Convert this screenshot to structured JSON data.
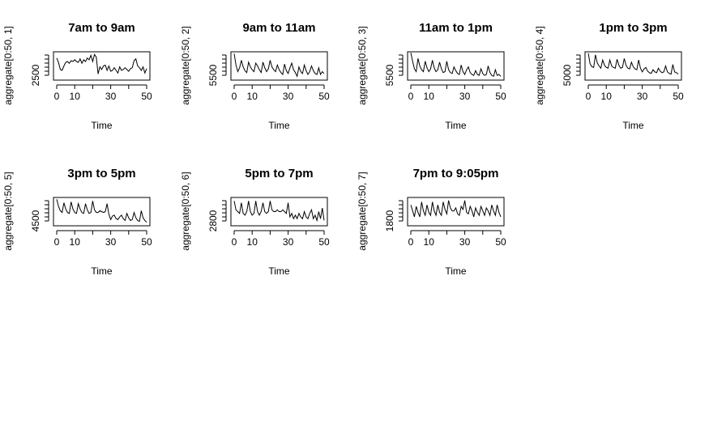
{
  "chart_data": [
    {
      "type": "line",
      "title": "7am to 9am",
      "xlabel": "Time",
      "ylabel": "aggregate[0:50, 1]",
      "xlim": [
        0,
        50
      ],
      "ylim": [
        1900,
        3500
      ],
      "xticks": [
        0,
        10,
        30,
        50
      ],
      "yticks": [
        2500
      ],
      "x": [
        0,
        1,
        2,
        3,
        4,
        5,
        6,
        7,
        8,
        9,
        10,
        11,
        12,
        13,
        14,
        15,
        16,
        17,
        18,
        19,
        20,
        21,
        22,
        23,
        24,
        25,
        26,
        27,
        28,
        29,
        30,
        31,
        32,
        33,
        34,
        35,
        36,
        37,
        38,
        39,
        40,
        41,
        42,
        43,
        44,
        45,
        46,
        47,
        48,
        49,
        50
      ],
      "values": [
        3150,
        2900,
        2500,
        2450,
        2700,
        2900,
        2950,
        2850,
        3000,
        2950,
        3050,
        2950,
        2900,
        3100,
        2850,
        3050,
        2950,
        3150,
        3050,
        3300,
        2950,
        3350,
        3200,
        2250,
        2650,
        2500,
        2700,
        2750,
        2450,
        2700,
        2400,
        2450,
        2600,
        2450,
        2300,
        2650,
        2450,
        2500,
        2600,
        2500,
        2400,
        2550,
        2600,
        3000,
        3100,
        2700,
        2600,
        2450,
        2650,
        2300,
        2550
      ]
    },
    {
      "type": "line",
      "title": "9am to 11am",
      "xlabel": "Time",
      "ylabel": "aggregate[0:50, 2]",
      "xlim": [
        0,
        50
      ],
      "ylim": [
        5000,
        8000
      ],
      "xticks": [
        0,
        10,
        30,
        50
      ],
      "yticks": [
        5500
      ],
      "x": [
        0,
        1,
        2,
        3,
        4,
        5,
        6,
        7,
        8,
        9,
        10,
        11,
        12,
        13,
        14,
        15,
        16,
        17,
        18,
        19,
        20,
        21,
        22,
        23,
        24,
        25,
        26,
        27,
        28,
        29,
        30,
        31,
        32,
        33,
        34,
        35,
        36,
        37,
        38,
        39,
        40,
        41,
        42,
        43,
        44,
        45,
        46,
        47,
        48,
        49,
        50
      ],
      "values": [
        7800,
        6600,
        5900,
        6300,
        7100,
        6400,
        6000,
        5800,
        6900,
        6400,
        6100,
        5900,
        6800,
        6500,
        6100,
        5800,
        6900,
        6300,
        5900,
        6200,
        7100,
        6400,
        6100,
        5900,
        6600,
        6100,
        5800,
        5600,
        6700,
        6000,
        5700,
        6300,
        6800,
        6100,
        5800,
        5400,
        6400,
        5900,
        5700,
        6600,
        6000,
        5600,
        5900,
        6500,
        6000,
        5700,
        5600,
        6300,
        5600,
        5900,
        5700
      ]
    },
    {
      "type": "line",
      "title": "11am to 1pm",
      "xlabel": "Time",
      "ylabel": "aggregate[0:50, 3]",
      "xlim": [
        0,
        50
      ],
      "ylim": [
        5000,
        8000
      ],
      "xticks": [
        0,
        10,
        30,
        50
      ],
      "yticks": [
        5500
      ],
      "x": [
        0,
        1,
        2,
        3,
        4,
        5,
        6,
        7,
        8,
        9,
        10,
        11,
        12,
        13,
        14,
        15,
        16,
        17,
        18,
        19,
        20,
        21,
        22,
        23,
        24,
        25,
        26,
        27,
        28,
        29,
        30,
        31,
        32,
        33,
        34,
        35,
        36,
        37,
        38,
        39,
        40,
        41,
        42,
        43,
        44,
        45,
        46,
        47,
        48,
        49,
        50
      ],
      "values": [
        7900,
        7000,
        6200,
        5900,
        7300,
        6500,
        6100,
        5900,
        7000,
        6300,
        5900,
        6200,
        7100,
        6300,
        5900,
        6100,
        6900,
        6200,
        5800,
        5900,
        7000,
        6100,
        5800,
        5700,
        6400,
        6000,
        5700,
        5600,
        6600,
        5900,
        5600,
        6100,
        6400,
        5800,
        5600,
        5500,
        6000,
        5600,
        5500,
        6200,
        5700,
        5500,
        5600,
        6500,
        5800,
        5500,
        5400,
        6100,
        5500,
        5600,
        5400
      ]
    },
    {
      "type": "line",
      "title": "1pm to 3pm",
      "xlabel": "Time",
      "ylabel": "aggregate[0:50, 4]",
      "xlim": [
        0,
        50
      ],
      "ylim": [
        4200,
        8000
      ],
      "xticks": [
        0,
        10,
        30,
        50
      ],
      "yticks": [
        5000
      ],
      "x": [
        0,
        1,
        2,
        3,
        4,
        5,
        6,
        7,
        8,
        9,
        10,
        11,
        12,
        13,
        14,
        15,
        16,
        17,
        18,
        19,
        20,
        21,
        22,
        23,
        24,
        25,
        26,
        27,
        28,
        29,
        30,
        31,
        32,
        33,
        34,
        35,
        36,
        37,
        38,
        39,
        40,
        41,
        42,
        43,
        44,
        45,
        46,
        47,
        48,
        49,
        50
      ],
      "values": [
        7800,
        6400,
        6000,
        5900,
        7600,
        6500,
        6100,
        5800,
        6900,
        6200,
        5900,
        5800,
        6900,
        6100,
        5900,
        5800,
        7000,
        6200,
        5800,
        5900,
        7100,
        6200,
        5800,
        5700,
        6600,
        6000,
        5700,
        5600,
        6900,
        5800,
        5300,
        5700,
        5900,
        5400,
        5200,
        5100,
        5600,
        5300,
        5200,
        5800,
        5400,
        5200,
        5300,
        6100,
        5300,
        5100,
        5000,
        6300,
        5300,
        5200,
        5000
      ]
    },
    {
      "type": "line",
      "title": "3pm to 5pm",
      "xlabel": "Time",
      "ylabel": "aggregate[0:50, 5]",
      "xlim": [
        0,
        50
      ],
      "ylim": [
        4100,
        7300
      ],
      "xticks": [
        0,
        10,
        30,
        50
      ],
      "yticks": [
        4500
      ],
      "x": [
        0,
        1,
        2,
        3,
        4,
        5,
        6,
        7,
        8,
        9,
        10,
        11,
        12,
        13,
        14,
        15,
        16,
        17,
        18,
        19,
        20,
        21,
        22,
        23,
        24,
        25,
        26,
        27,
        28,
        29,
        30,
        31,
        32,
        33,
        34,
        35,
        36,
        37,
        38,
        39,
        40,
        41,
        42,
        43,
        44,
        45,
        46,
        47,
        48,
        49,
        50
      ],
      "values": [
        7100,
        6300,
        5800,
        5600,
        6700,
        6000,
        5600,
        5500,
        6800,
        6000,
        5600,
        5500,
        6600,
        6000,
        5600,
        5500,
        6600,
        5900,
        5500,
        5600,
        6900,
        5900,
        5600,
        5600,
        5800,
        5700,
        5600,
        5700,
        6600,
        5400,
        4800,
        5200,
        5300,
        4900,
        4800,
        5100,
        5300,
        4900,
        4700,
        5500,
        5000,
        4700,
        4800,
        5600,
        5000,
        4700,
        4600,
        5800,
        5000,
        4700,
        4500
      ]
    },
    {
      "type": "line",
      "title": "5pm to 7pm",
      "xlabel": "Time",
      "ylabel": "aggregate[0:50, 6]",
      "xlim": [
        0,
        50
      ],
      "ylim": [
        2500,
        4100
      ],
      "xticks": [
        0,
        10,
        30,
        50
      ],
      "yticks": [
        2800
      ],
      "x": [
        0,
        1,
        2,
        3,
        4,
        5,
        6,
        7,
        8,
        9,
        10,
        11,
        12,
        13,
        14,
        15,
        16,
        17,
        18,
        19,
        20,
        21,
        22,
        23,
        24,
        25,
        26,
        27,
        28,
        29,
        30,
        31,
        32,
        33,
        34,
        35,
        36,
        37,
        38,
        39,
        40,
        41,
        42,
        43,
        44,
        45,
        46,
        47,
        48,
        49,
        50
      ],
      "values": [
        3900,
        3400,
        3300,
        3200,
        3800,
        3200,
        3100,
        3300,
        3900,
        3300,
        3100,
        3200,
        3900,
        3300,
        3100,
        3300,
        3800,
        3300,
        3200,
        3300,
        3900,
        3400,
        3300,
        3300,
        3400,
        3300,
        3300,
        3400,
        3300,
        3200,
        3800,
        3000,
        3200,
        2900,
        3100,
        2900,
        3200,
        3000,
        2900,
        3300,
        3000,
        2900,
        3200,
        3400,
        2900,
        3100,
        2800,
        3300,
        2900,
        3500,
        2800
      ]
    },
    {
      "type": "line",
      "title": "7pm to 9:05pm",
      "xlabel": "Time",
      "ylabel": "aggregate[0:50, 7]",
      "xlim": [
        0,
        50
      ],
      "ylim": [
        1500,
        3400
      ],
      "xticks": [
        0,
        10,
        30,
        50
      ],
      "yticks": [
        1800
      ],
      "x": [
        0,
        1,
        2,
        3,
        4,
        5,
        6,
        7,
        8,
        9,
        10,
        11,
        12,
        13,
        14,
        15,
        16,
        17,
        18,
        19,
        20,
        21,
        22,
        23,
        24,
        25,
        26,
        27,
        28,
        29,
        30,
        31,
        32,
        33,
        34,
        35,
        36,
        37,
        38,
        39,
        40,
        41,
        42,
        43,
        44,
        45,
        46,
        47,
        48,
        49,
        50
      ],
      "values": [
        2900,
        2500,
        2100,
        2800,
        2400,
        2100,
        3100,
        2500,
        2200,
        2900,
        2400,
        2200,
        3100,
        2500,
        2200,
        2900,
        2400,
        2200,
        3100,
        2600,
        2300,
        3200,
        2700,
        2500,
        2500,
        2700,
        2300,
        2200,
        2800,
        2600,
        3200,
        2400,
        2300,
        2800,
        2500,
        2100,
        2700,
        2400,
        2200,
        2800,
        2500,
        2200,
        2700,
        2500,
        2200,
        2900,
        2500,
        2200,
        2900,
        2400,
        2100
      ]
    }
  ]
}
